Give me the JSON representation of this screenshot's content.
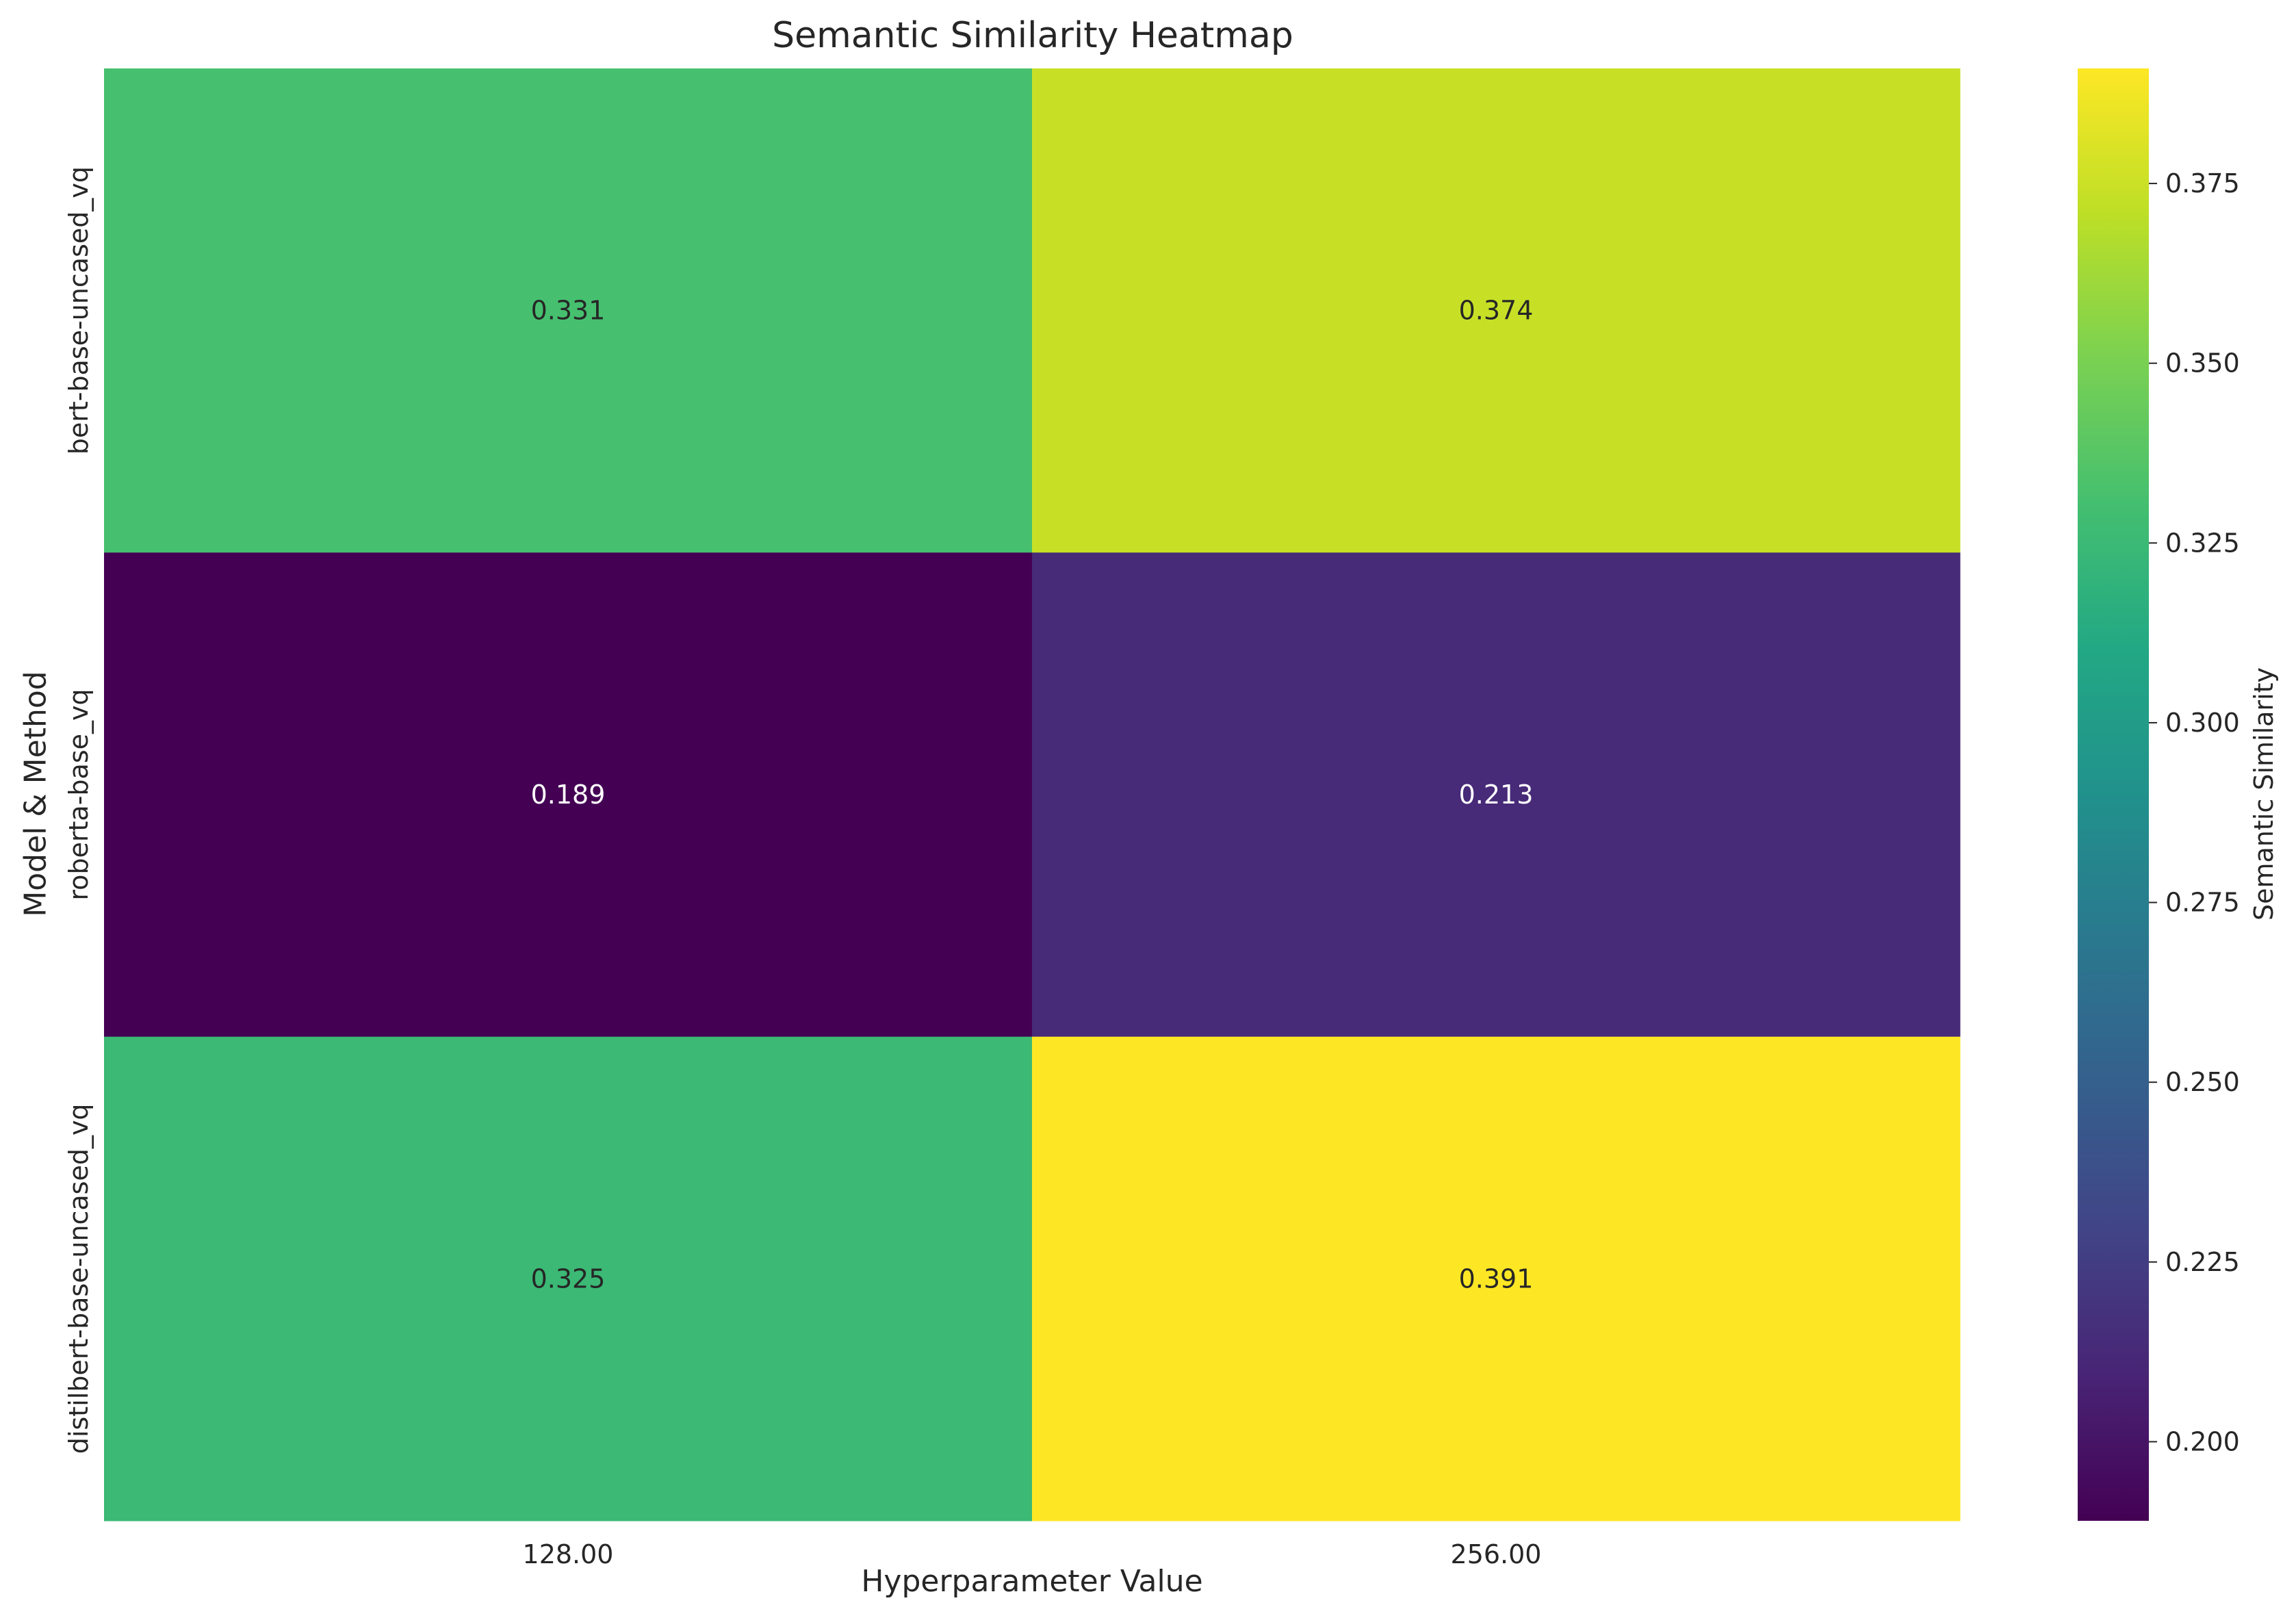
{
  "chart_data": {
    "type": "heatmap",
    "title": "Semantic Similarity Heatmap",
    "xlabel": "Hyperparameter Value",
    "ylabel": "Model & Method",
    "x_categories": [
      "128.00",
      "256.00"
    ],
    "y_categories": [
      "bert-base-uncased_vq",
      "roberta-base_vq",
      "distilbert-base-uncased_vq"
    ],
    "values": [
      [
        0.331,
        0.374
      ],
      [
        0.189,
        0.213
      ],
      [
        0.325,
        0.391
      ]
    ],
    "value_labels": [
      [
        "0.331",
        "0.374"
      ],
      [
        "0.189",
        "0.213"
      ],
      [
        "0.325",
        "0.391"
      ]
    ],
    "colormap": "viridis",
    "color_range": [
      0.189,
      0.391
    ],
    "colorbar": {
      "label": "Semantic Similarity",
      "ticks": [
        0.2,
        0.225,
        0.25,
        0.275,
        0.3,
        0.325,
        0.35,
        0.375
      ],
      "tick_labels": [
        "0.200",
        "0.225",
        "0.250",
        "0.275",
        "0.300",
        "0.325",
        "0.350",
        "0.375"
      ]
    },
    "grid": false
  }
}
